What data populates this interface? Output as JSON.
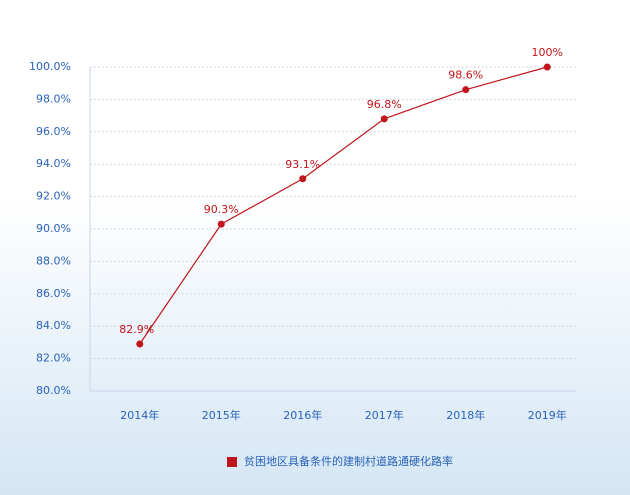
{
  "chart_data": {
    "type": "line",
    "categories": [
      "2014年",
      "2015年",
      "2016年",
      "2017年",
      "2018年",
      "2019年"
    ],
    "series": [
      {
        "name": "贫困地区具备条件的建制村道路通硬化路率",
        "color": "#c0151b",
        "values": [
          82.9,
          90.3,
          93.1,
          96.8,
          98.6,
          100
        ],
        "value_labels": [
          "82.9%",
          "90.3%",
          "93.1%",
          "96.8%",
          "98.6%",
          "100%"
        ]
      }
    ],
    "ylim": [
      80,
      100
    ],
    "yticks": [
      {
        "value": 80,
        "label": "80.0%"
      },
      {
        "value": 82,
        "label": "82.0%"
      },
      {
        "value": 84,
        "label": "84.0%"
      },
      {
        "value": 86,
        "label": "86.0%"
      },
      {
        "value": 88,
        "label": "88.0%"
      },
      {
        "value": 90,
        "label": "90.0%"
      },
      {
        "value": 92,
        "label": "92.0%"
      },
      {
        "value": 94,
        "label": "94.0%"
      },
      {
        "value": 96,
        "label": "96.0%"
      },
      {
        "value": 98,
        "label": "98.0%"
      },
      {
        "value": 100,
        "label": "100.0%"
      }
    ],
    "grid": true,
    "legend": "bottom"
  }
}
